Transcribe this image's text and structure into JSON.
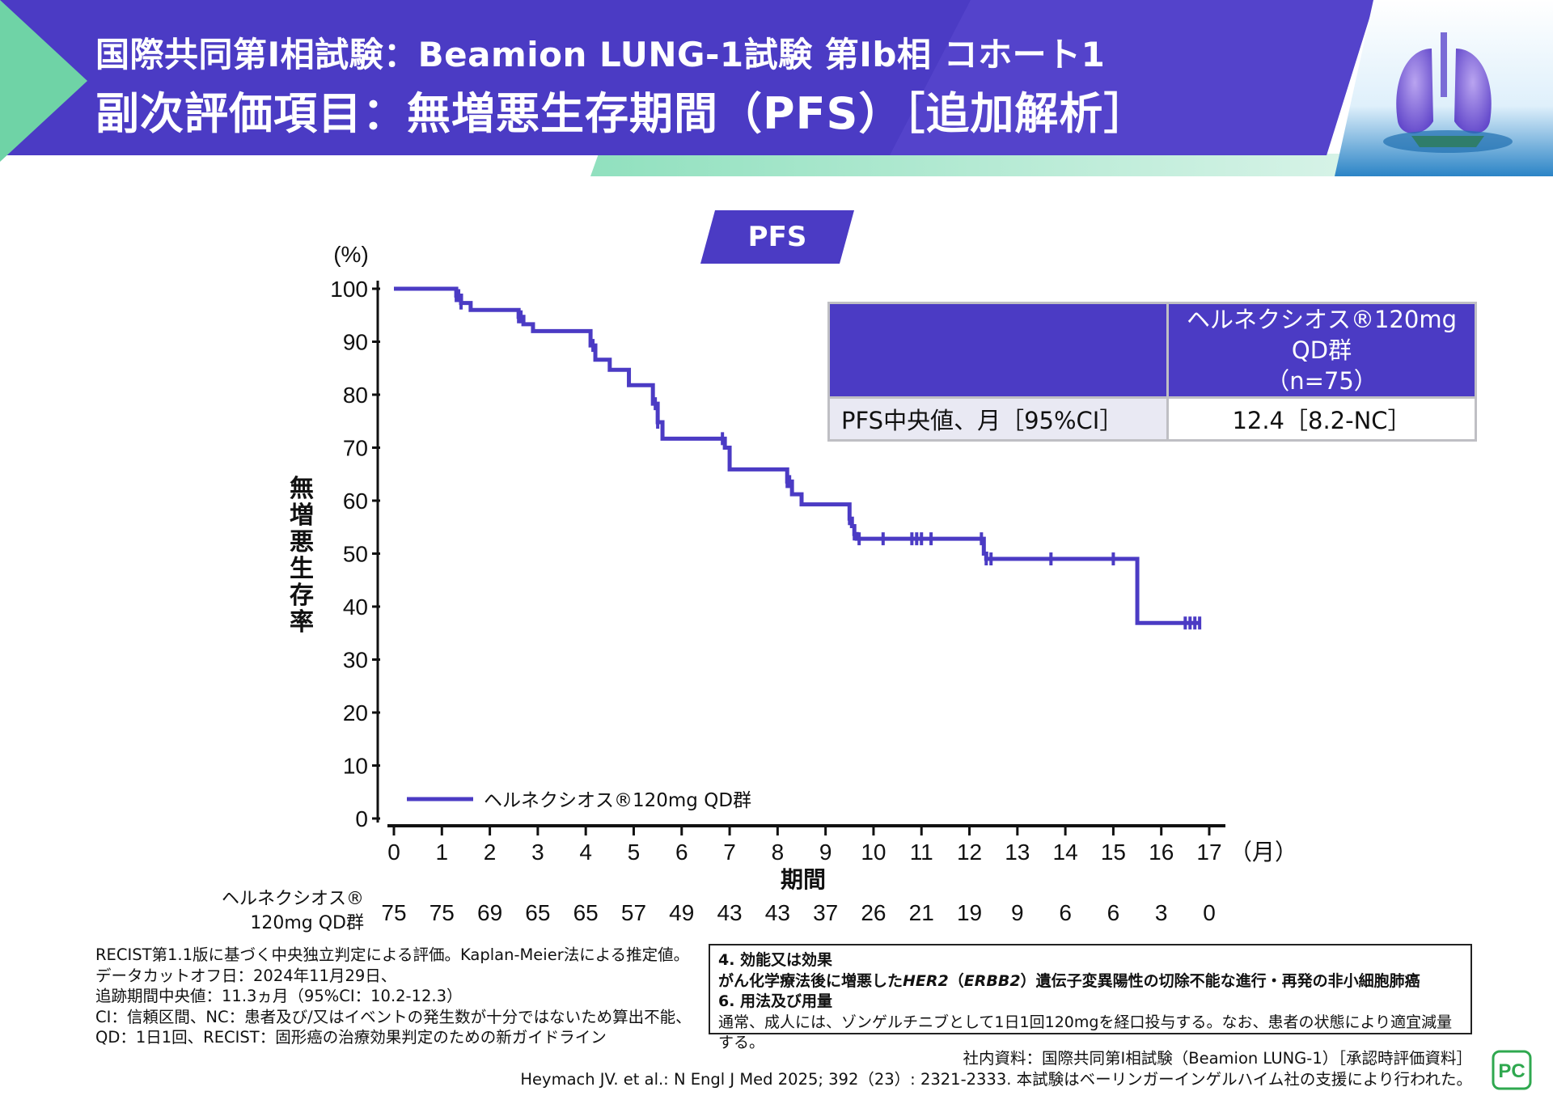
{
  "header": {
    "title_line1": "国際共同第I相試験：Beamion LUNG-1試験 第Ib相 コホート1",
    "title_line2": "副次評価項目：無増悪生存期間（PFS）［追加解析］",
    "colors": {
      "band": "#4b3bc4",
      "accent_green": "#6fd3a6"
    }
  },
  "badge": {
    "label": "PFS"
  },
  "chart_data": {
    "type": "line",
    "title": "PFS",
    "xlabel": "期間",
    "x_unit": "（月）",
    "ylabel": "無増悪生存率",
    "y_unit": "(%)",
    "xlim": [
      0,
      17
    ],
    "ylim": [
      0,
      100
    ],
    "x_ticks": [
      0,
      1,
      2,
      3,
      4,
      5,
      6,
      7,
      8,
      9,
      10,
      11,
      12,
      13,
      14,
      15,
      16,
      17
    ],
    "y_ticks": [
      0,
      10,
      20,
      30,
      40,
      50,
      60,
      70,
      80,
      90,
      100
    ],
    "legend": {
      "label": "ヘルネクシオス®120mg QD群",
      "position": "bottom-left"
    },
    "series": [
      {
        "name": "ヘルネクシオス®120mg QD群",
        "color": "#4b3bc4",
        "steps": [
          [
            0,
            100
          ],
          [
            1.3,
            98.7
          ],
          [
            1.4,
            97.3
          ],
          [
            1.6,
            96.0
          ],
          [
            2.6,
            94.7
          ],
          [
            2.7,
            93.3
          ],
          [
            2.9,
            92.0
          ],
          [
            4.1,
            89.3
          ],
          [
            4.2,
            86.6
          ],
          [
            4.5,
            84.7
          ],
          [
            4.9,
            81.8
          ],
          [
            5.4,
            78.3
          ],
          [
            5.5,
            74.8
          ],
          [
            5.6,
            71.7
          ],
          [
            6.9,
            70.0
          ],
          [
            7.0,
            65.9
          ],
          [
            8.2,
            63.6
          ],
          [
            8.3,
            61.2
          ],
          [
            8.5,
            59.3
          ],
          [
            9.5,
            56.6
          ],
          [
            9.55,
            55.2
          ],
          [
            9.6,
            53.7
          ],
          [
            9.65,
            52.8
          ],
          [
            12.3,
            50.0
          ],
          [
            12.35,
            49.0
          ],
          [
            15.5,
            36.9
          ],
          [
            16.8,
            36.9
          ]
        ],
        "censor_times": [
          1.3,
          1.35,
          1.4,
          2.6,
          2.65,
          4.15,
          5.45,
          5.5,
          6.85,
          8.2,
          8.25,
          9.5,
          9.6,
          9.7,
          10.2,
          10.8,
          10.9,
          11.0,
          11.2,
          12.25,
          12.35,
          12.45,
          13.7,
          15.0,
          16.5,
          16.6,
          16.7,
          16.8
        ],
        "at_risk": [
          75,
          75,
          69,
          65,
          65,
          57,
          49,
          43,
          43,
          37,
          26,
          21,
          19,
          9,
          6,
          6,
          3,
          0
        ]
      }
    ],
    "risk_table_label": [
      "ヘルネクシオス®",
      "120mg QD群"
    ]
  },
  "median_table": {
    "header_col2_line1": "ヘルネクシオス®120mg QD群",
    "header_col2_line2": "（n=75）",
    "row_label": "PFS中央値、月［95%CI］",
    "row_value": "12.4［8.2-NC］"
  },
  "footnotes": [
    "RECIST第1.1版に基づく中央独立判定による評価。Kaplan-Meier法による推定値。",
    "データカットオフ日：2024年11月29日、",
    "追跡期間中央値：11.3ヵ月（95%CI：10.2-12.3）",
    "CI：信頼区間、NC：患者及び/又はイベントの発生数が十分ではないため算出不能、",
    "QD：1日1回、RECIST：固形癌の治療効果判定のための新ガイドライン"
  ],
  "indication": {
    "heading1": "4. 効能又は効果",
    "text1_pre": "がん化学療法後に増悪した",
    "text1_her2": "HER2",
    "text1_mid": "（",
    "text1_erbb2": "ERBB2",
    "text1_post": "）遺伝子変異陽性の切除不能な進行・再発の非小細胞肺癌",
    "heading2": "6. 用法及び用量",
    "text2": "通常、成人には、ゾンゲルチニブとして1日1回120mgを経口投与する。なお、患者の状態により適宜減量する。"
  },
  "references": {
    "line1": "社内資料：国際共同第I相試験（Beamion LUNG-1）［承認時評価資料］",
    "line2": "Heymach JV. et al.: N Engl J Med 2025; 392（23）: 2321-2333. 本試験はベーリンガーインゲルハイム社の支援により行われた。"
  },
  "logo": {
    "text": "PC",
    "color": "#2fa84f"
  }
}
